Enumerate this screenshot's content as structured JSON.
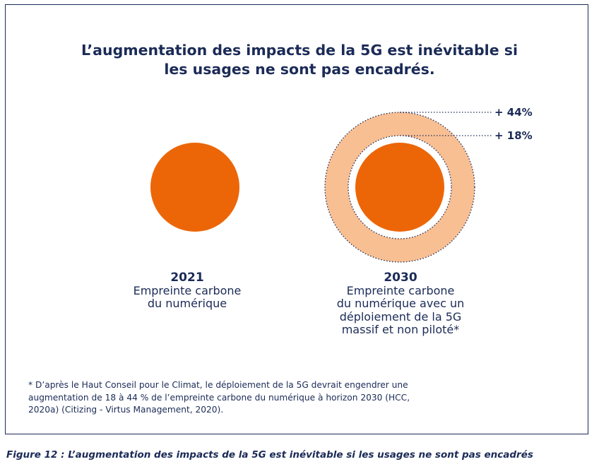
{
  "title": {
    "line1": "L’augmentation des impacts de la 5G est inévitable si",
    "line2": "les usages ne sont pas encadrés."
  },
  "colors": {
    "navy": "#1b2b57",
    "orange": "#ec6608",
    "peach": "#f8bf93"
  },
  "left": {
    "year": "2021",
    "label_line1": "Empreinte carbone",
    "label_line2": "du numérique"
  },
  "right": {
    "year": "2030",
    "label_line1": "Empreinte carbone",
    "label_line2": "du numérique avec un",
    "label_line3": "déploiement de la 5G",
    "label_line4": "massif et non piloté*",
    "outer_annotation": "+ 44%",
    "inner_annotation": "+ 18%"
  },
  "footnote": {
    "line1": "* D’après le Haut Conseil pour le Climat, le déploiement de la 5G devrait engendrer une",
    "line2": "augmentation de 18 à 44 % de l’empreinte carbone du numérique à horizon 2030 (HCC,",
    "line3": "2020a) (Citizing - Virtus Management, 2020)."
  },
  "figure_caption": "Figure 12 : L’augmentation des impacts de la 5G est inévitable si les usages ne sont pas encadrés"
}
